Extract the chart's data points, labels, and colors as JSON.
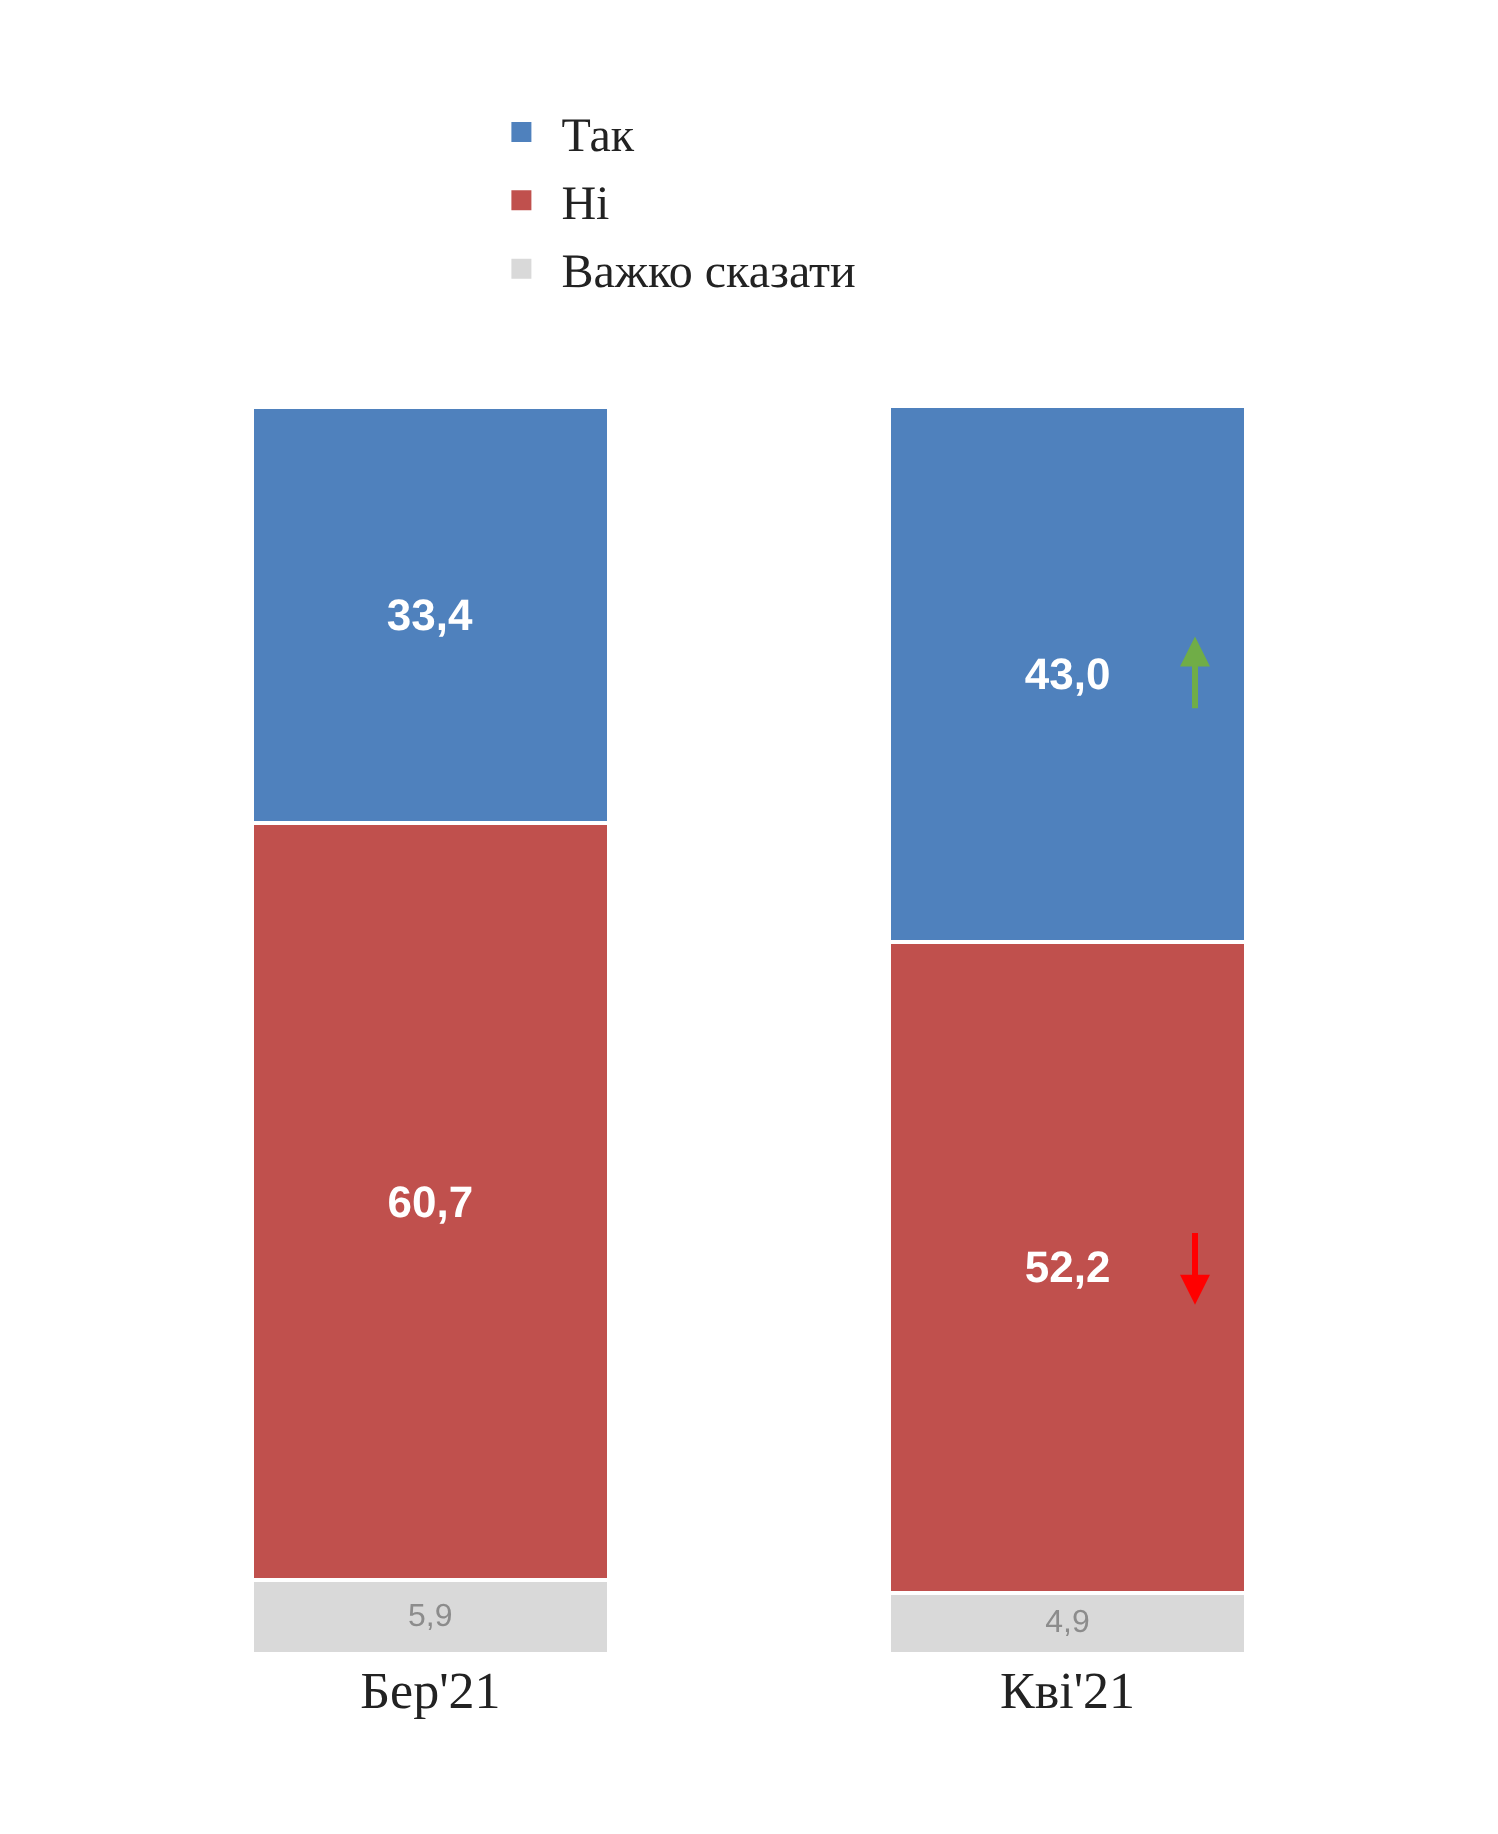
{
  "chart_data": {
    "type": "bar",
    "stacked": true,
    "categories": [
      "Бер'21",
      "Кві'21"
    ],
    "series": [
      {
        "name": "Важко сказати",
        "color": "#d9d9d9",
        "values": [
          5.9,
          4.9
        ],
        "value_labels": [
          "5,9",
          "4,9"
        ]
      },
      {
        "name": "Ні",
        "color": "#c0504d",
        "values": [
          60.7,
          52.2
        ],
        "value_labels": [
          "60,7",
          "52,2"
        ]
      },
      {
        "name": "Так",
        "color": "#4f81bd",
        "values": [
          33.4,
          43.0
        ],
        "value_labels": [
          "33,4",
          "43,0"
        ]
      }
    ],
    "legend": "top left"
  }
}
